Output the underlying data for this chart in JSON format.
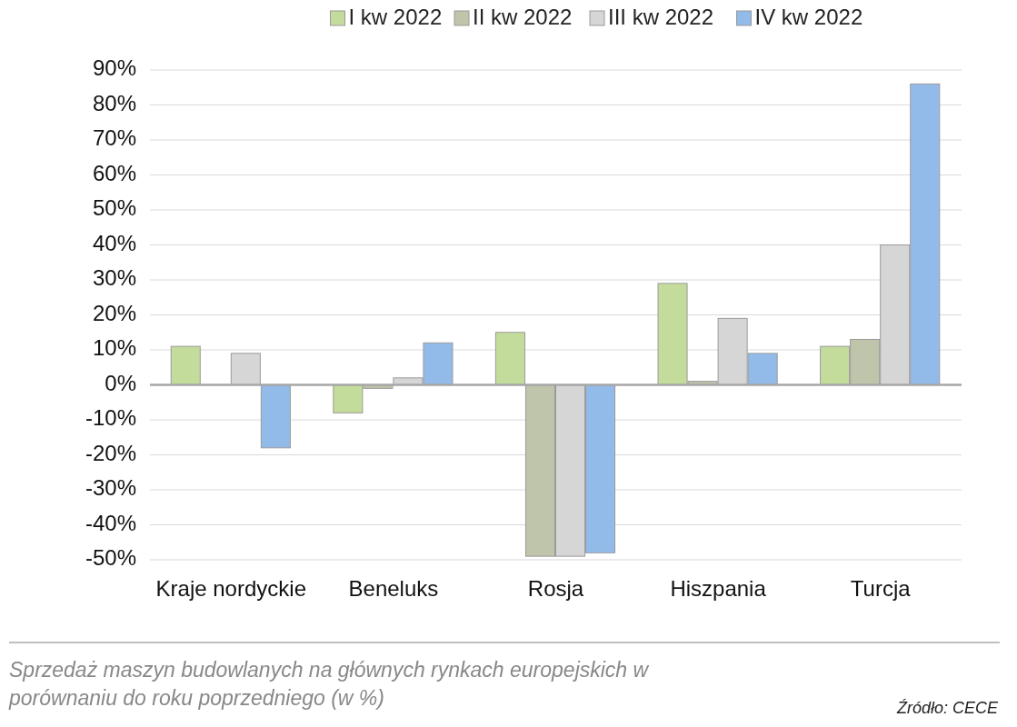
{
  "chart_data": {
    "type": "bar",
    "categories": [
      "Kraje nordyckie",
      "Beneluks",
      "Rosja",
      "Hiszpania",
      "Turcja"
    ],
    "series": [
      {
        "name": "I kw 2022",
        "color": "#c3dc9c",
        "values": [
          11,
          -8,
          15,
          29,
          11
        ]
      },
      {
        "name": "II kw 2022",
        "color": "#bfc5aa",
        "values": [
          null,
          -1,
          -49,
          1,
          13
        ]
      },
      {
        "name": "III kw 2022",
        "color": "#d6d6d6",
        "values": [
          9,
          2,
          -49,
          19,
          40
        ]
      },
      {
        "name": "IV kw 2022",
        "color": "#93bbea",
        "values": [
          -18,
          12,
          -48,
          9,
          86
        ]
      }
    ],
    "ylim": [
      -50,
      90
    ],
    "yticks": [
      {
        "value": -50,
        "label": "-50%"
      },
      {
        "value": -40,
        "label": "-40%"
      },
      {
        "value": -30,
        "label": "-30%"
      },
      {
        "value": -20,
        "label": "-20%"
      },
      {
        "value": -10,
        "label": "-10%"
      },
      {
        "value": 0,
        "label": "0%"
      },
      {
        "value": 10,
        "label": "10%"
      },
      {
        "value": 20,
        "label": "20%"
      },
      {
        "value": 30,
        "label": "30%"
      },
      {
        "value": 40,
        "label": "40%"
      },
      {
        "value": 50,
        "label": "50%"
      },
      {
        "value": 60,
        "label": "60%"
      },
      {
        "value": 70,
        "label": "70%"
      },
      {
        "value": 80,
        "label": "80%"
      },
      {
        "value": 90,
        "label": "90%"
      }
    ],
    "grid": "y",
    "legend": "top",
    "annotations": [
      "Sprzedaż maszyn budowlanych na głównych rynkach europejskich w porównaniu do roku poprzedniego (w %)",
      "Źródło: CECE"
    ]
  }
}
